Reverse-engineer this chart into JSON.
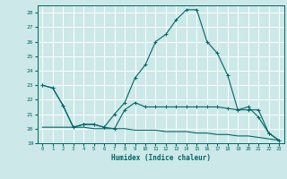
{
  "xlabel": "Humidex (Indice chaleur)",
  "bg_color": "#cce8e8",
  "line_color": "#006666",
  "grid_color": "#ffffff",
  "xmin": -0.5,
  "xmax": 23.5,
  "ymin": 19,
  "ymax": 28.5,
  "series_main_x": [
    0,
    1,
    2,
    3,
    4,
    5,
    6,
    7,
    8,
    9,
    10,
    11,
    12,
    13,
    14,
    15,
    16,
    17,
    18,
    19,
    20,
    21,
    22,
    23
  ],
  "series_main_y": [
    23.0,
    22.8,
    21.6,
    20.1,
    20.3,
    20.3,
    20.1,
    21.0,
    21.8,
    23.5,
    24.4,
    26.0,
    26.5,
    27.5,
    28.2,
    28.2,
    26.0,
    25.2,
    23.7,
    21.3,
    21.5,
    20.8,
    19.7,
    19.2
  ],
  "series_mid_x": [
    0,
    1,
    2,
    3,
    4,
    5,
    6,
    7,
    8,
    9,
    10,
    11,
    12,
    13,
    14,
    15,
    16,
    17,
    18,
    19,
    20,
    21,
    22,
    23
  ],
  "series_mid_y": [
    23.0,
    22.8,
    21.6,
    20.1,
    20.3,
    20.3,
    20.1,
    20.0,
    21.3,
    21.8,
    21.5,
    21.5,
    21.5,
    21.5,
    21.5,
    21.5,
    21.5,
    21.5,
    21.4,
    21.3,
    21.3,
    21.3,
    19.7,
    19.2
  ],
  "series_low_x": [
    0,
    1,
    2,
    3,
    4,
    5,
    6,
    7,
    8,
    9,
    10,
    11,
    12,
    13,
    14,
    15,
    16,
    17,
    18,
    19,
    20,
    21,
    22,
    23
  ],
  "series_low_y": [
    20.1,
    20.1,
    20.1,
    20.1,
    20.1,
    20.0,
    20.0,
    20.0,
    20.0,
    19.9,
    19.9,
    19.9,
    19.8,
    19.8,
    19.8,
    19.7,
    19.7,
    19.6,
    19.6,
    19.5,
    19.5,
    19.4,
    19.3,
    19.2
  ],
  "yticks": [
    19,
    20,
    21,
    22,
    23,
    24,
    25,
    26,
    27,
    28
  ],
  "xticks": [
    0,
    1,
    2,
    3,
    4,
    5,
    6,
    7,
    8,
    9,
    10,
    11,
    12,
    13,
    14,
    15,
    16,
    17,
    18,
    19,
    20,
    21,
    22,
    23
  ]
}
